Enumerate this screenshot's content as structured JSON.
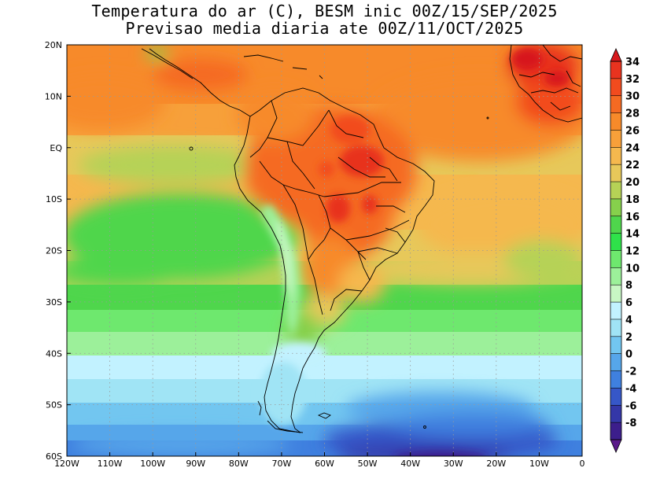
{
  "title": {
    "line1": "Temperatura do ar (C), BESM inic 00Z/15/SEP/2025",
    "line2": "Previsao media diaria ate 00Z/11/OCT/2025"
  },
  "map": {
    "lon_ticks": [
      "120W",
      "110W",
      "100W",
      "90W",
      "80W",
      "70W",
      "60W",
      "50W",
      "40W",
      "30W",
      "20W",
      "10W",
      "0"
    ],
    "lat_ticks": [
      "20N",
      "10N",
      "EQ",
      "10S",
      "20S",
      "30S",
      "40S",
      "50S",
      "60S"
    ],
    "lon_range": [
      -120,
      0
    ],
    "lat_range": [
      -60,
      20
    ],
    "grid": "dotted"
  },
  "colorbar": {
    "unit": "C",
    "levels": [
      "34",
      "32",
      "30",
      "28",
      "26",
      "24",
      "22",
      "20",
      "18",
      "16",
      "14",
      "12",
      "10",
      "8",
      "6",
      "4",
      "2",
      "0",
      "-2",
      "-4",
      "-6",
      "-8"
    ],
    "colors": [
      "#d7191c",
      "#e8331f",
      "#f24b1e",
      "#f56a22",
      "#f78a2a",
      "#f7a03a",
      "#f5b84e",
      "#e7c85a",
      "#b6d256",
      "#86d04c",
      "#4fd64c",
      "#2fe24a",
      "#6ee86e",
      "#9cf09a",
      "#c8f7c4",
      "#c2f2ff",
      "#a0e4f5",
      "#72c6f0",
      "#56a6ea",
      "#3f80df",
      "#3657c8",
      "#3437a8",
      "#3c1e8c",
      "#5a1a8a"
    ]
  }
}
